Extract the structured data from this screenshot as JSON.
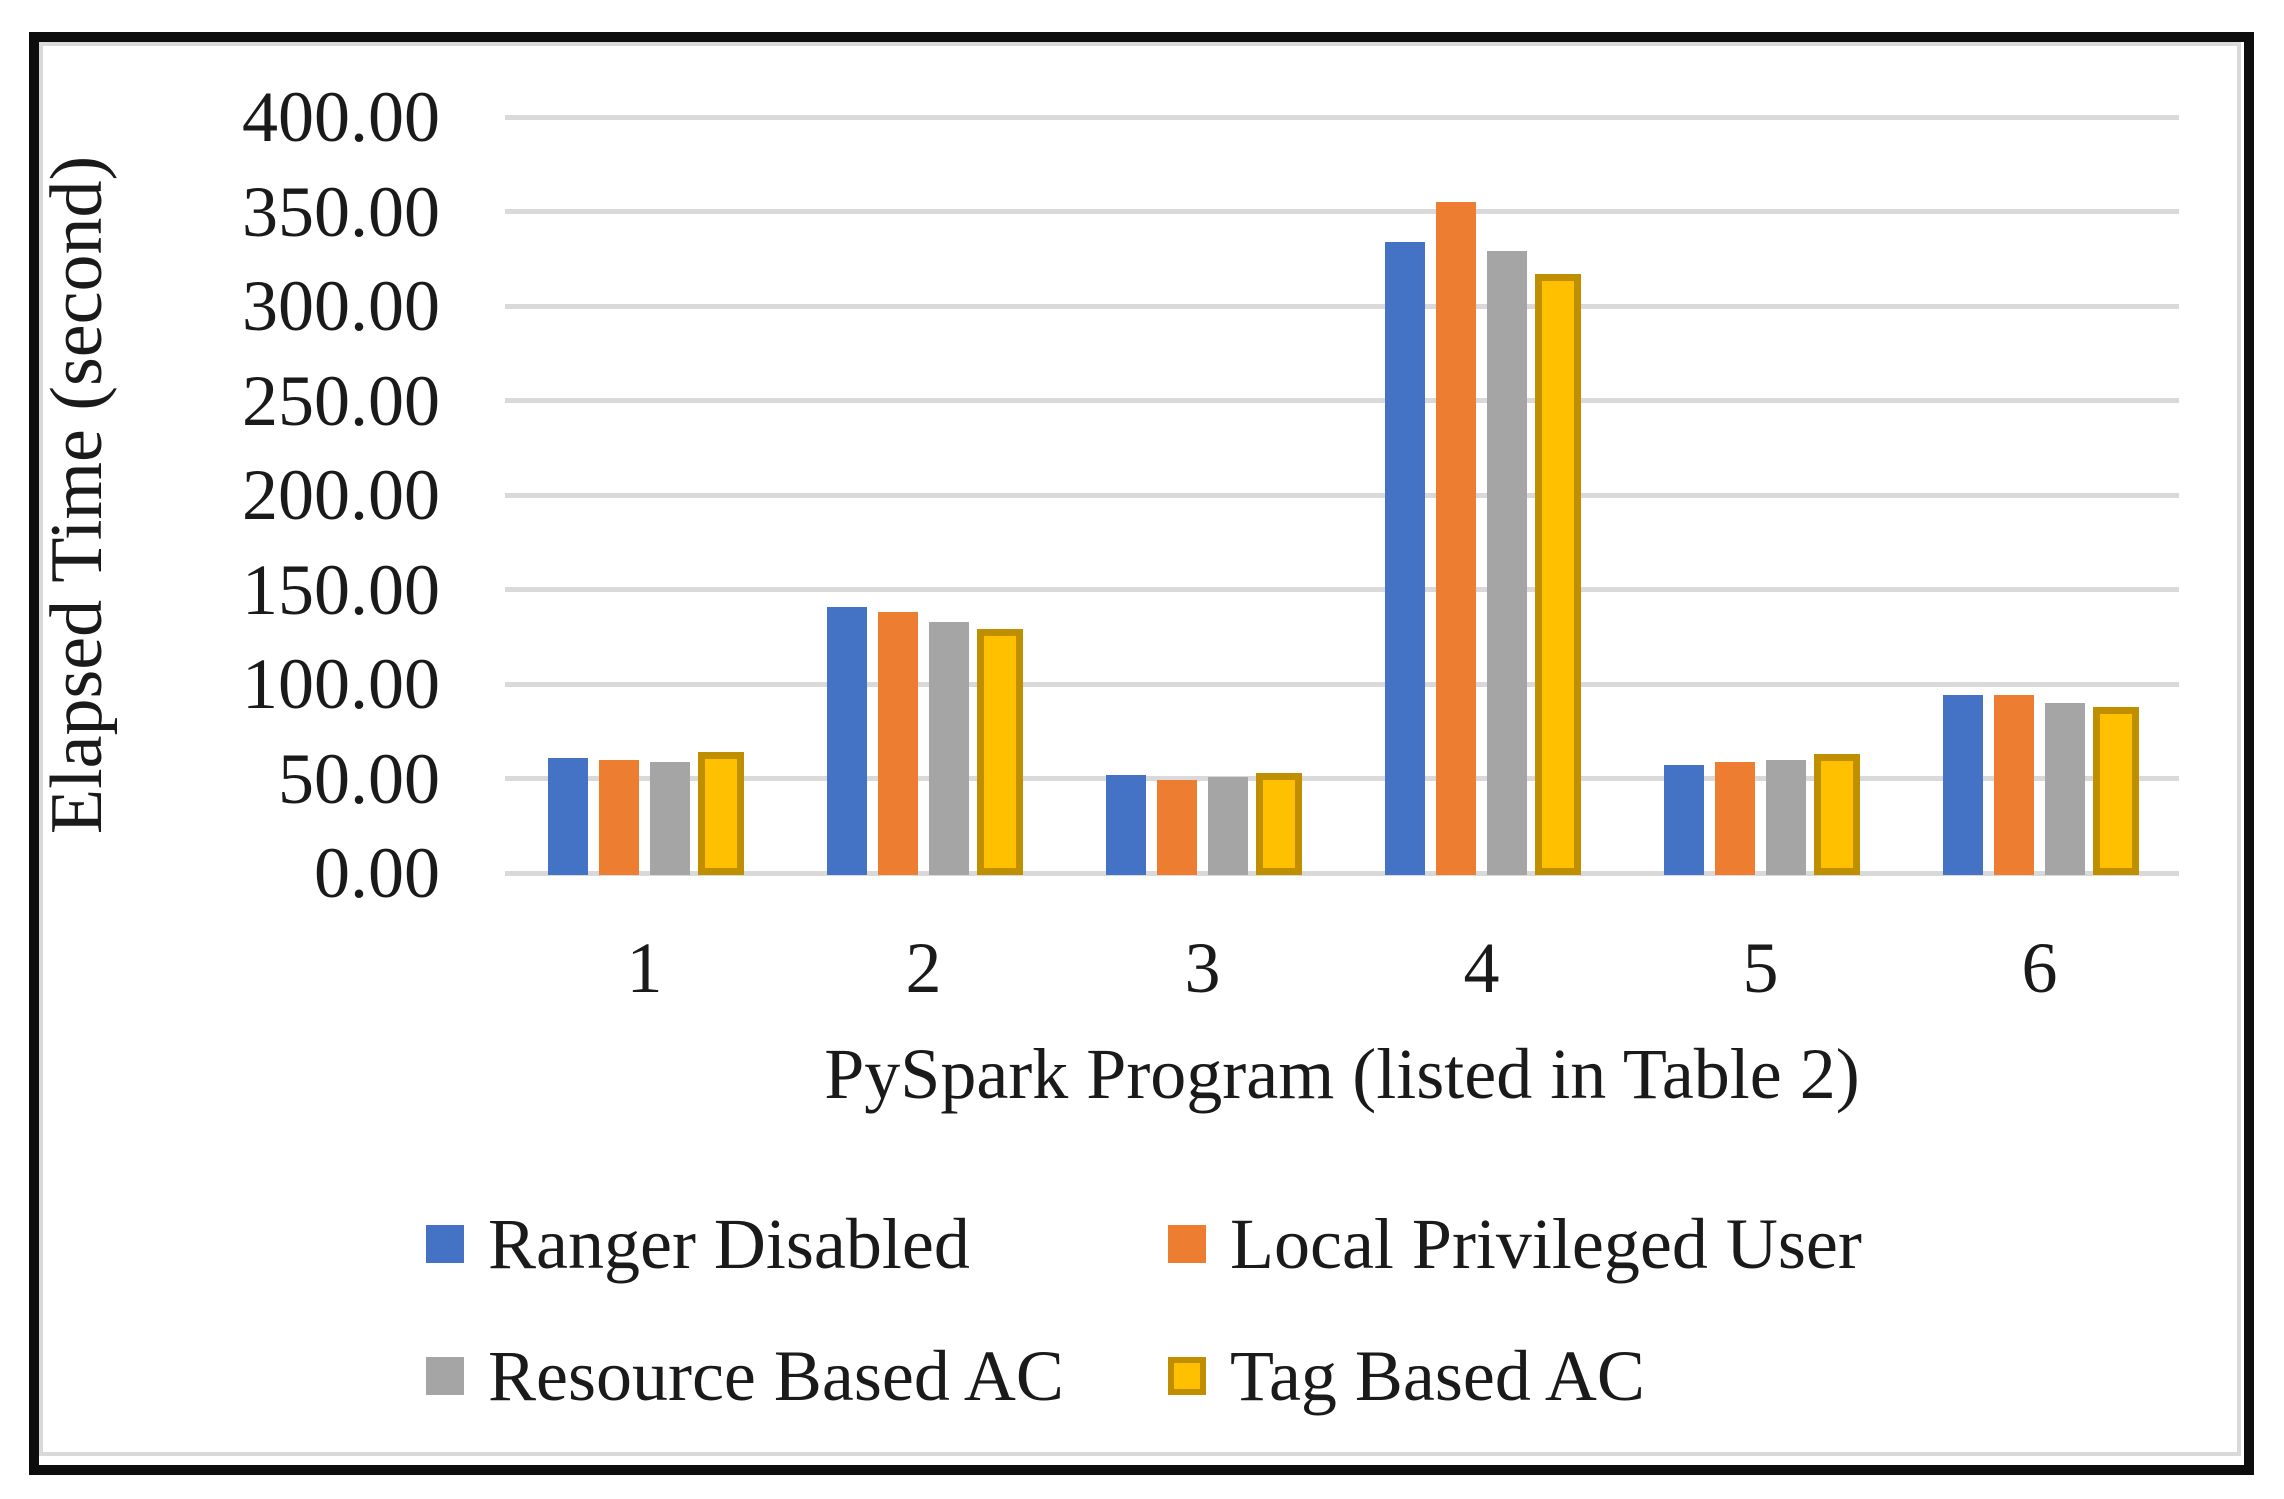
{
  "chart_data": {
    "type": "bar",
    "title": "",
    "categories": [
      "1",
      "2",
      "3",
      "4",
      "5",
      "6"
    ],
    "series": [
      {
        "name": "Ranger Disabled",
        "color": "#4472C4",
        "values": [
          62,
          142,
          53,
          335,
          58,
          95
        ]
      },
      {
        "name": "Local Privileged User",
        "color": "#ED7D31",
        "values": [
          61,
          139,
          50,
          356,
          60,
          95
        ]
      },
      {
        "name": "Resource Based AC",
        "color": "#A5A5A5",
        "values": [
          60,
          134,
          52,
          330,
          61,
          91
        ]
      },
      {
        "name": "Tag Based AC",
        "color": "#FFC000",
        "border_color": "#BF8F00",
        "values": [
          65,
          130,
          54,
          318,
          64,
          89
        ]
      }
    ],
    "xlabel": "PySpark Program (listed in Table 2)",
    "ylabel": "Elapsed Time  (second)",
    "ylim": [
      0,
      400
    ],
    "ytick_step": 50,
    "ytick_labels": [
      "400.00",
      "350.00",
      "300.00",
      "250.00",
      "200.00",
      "150.00",
      "100.00",
      "50.00",
      "0.00"
    ],
    "grid": true,
    "gridline_color": "#d9d9d9",
    "frame_color": "#0d0d0d",
    "legend_position": "bottom"
  }
}
